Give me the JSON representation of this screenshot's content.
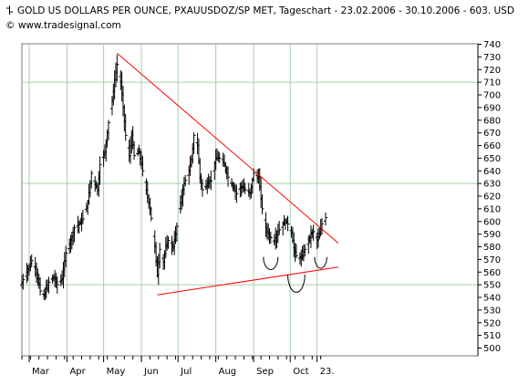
{
  "header": {
    "title": "GOLD US DOLLARS PER OUNCE, PXAUUSDOZ/SP MET, Tageschart - 23.02.2006 - 30.10.2006 - 603. USD",
    "credit": "© www.tradesignal.com"
  },
  "colors": {
    "price_bars": "#000000",
    "trendlines": "#ff0000",
    "grid": "#a9cfa9",
    "axis": "#000000"
  },
  "chart_data": {
    "type": "ohlc",
    "title": "GOLD US DOLLARS PER OUNCE, PXAUUSDOZ/SP MET, Tageschart - 23.02.2006 - 30.10.2006 - 603. USD",
    "x_date_range": [
      "2006-02-23",
      "2006-10-30"
    ],
    "y_axis": {
      "min": 500,
      "max": 740,
      "step": 10,
      "side": "right"
    },
    "y_ticks": [
      740,
      730,
      720,
      710,
      700,
      690,
      680,
      670,
      660,
      650,
      640,
      630,
      620,
      610,
      600,
      590,
      580,
      570,
      560,
      550,
      540,
      530,
      520,
      510,
      500
    ],
    "x_ticks": [
      {
        "label": "Mar",
        "date": "2006-03-01"
      },
      {
        "label": "Apr",
        "date": "2006-04-01"
      },
      {
        "label": "May",
        "date": "2006-05-01"
      },
      {
        "label": "Jun",
        "date": "2006-06-01"
      },
      {
        "label": "Jul",
        "date": "2006-07-01"
      },
      {
        "label": "Aug",
        "date": "2006-08-01"
      },
      {
        "label": "Sep",
        "date": "2006-09-01"
      },
      {
        "label": "Oct",
        "date": "2006-10-01"
      },
      {
        "label": "23.",
        "date": "2006-10-23"
      }
    ],
    "grid_h_values": [
      550,
      630,
      710
    ],
    "grid_v_dates": [
      "2006-03-01",
      "2006-04-01",
      "2006-05-01",
      "2006-06-01",
      "2006-07-01",
      "2006-08-01",
      "2006-09-01",
      "2006-10-01",
      "2006-10-23"
    ],
    "last_close": 603,
    "price_path": [
      [
        "2006-02-23",
        552
      ],
      [
        "2006-02-28",
        562
      ],
      [
        "2006-03-03",
        569
      ],
      [
        "2006-03-06",
        564
      ],
      [
        "2006-03-10",
        545
      ],
      [
        "2006-03-13",
        541
      ],
      [
        "2006-03-17",
        552
      ],
      [
        "2006-03-21",
        556
      ],
      [
        "2006-03-24",
        550
      ],
      [
        "2006-03-28",
        555
      ],
      [
        "2006-03-31",
        575
      ],
      [
        "2006-04-04",
        585
      ],
      [
        "2006-04-07",
        595
      ],
      [
        "2006-04-11",
        598
      ],
      [
        "2006-04-14",
        602
      ],
      [
        "2006-04-18",
        615
      ],
      [
        "2006-04-21",
        638
      ],
      [
        "2006-04-26",
        625
      ],
      [
        "2006-04-28",
        645
      ],
      [
        "2006-05-02",
        655
      ],
      [
        "2006-05-05",
        678
      ],
      [
        "2006-05-08",
        695
      ],
      [
        "2006-05-10",
        712
      ],
      [
        "2006-05-12",
        724
      ],
      [
        "2006-05-15",
        710
      ],
      [
        "2006-05-17",
        690
      ],
      [
        "2006-05-19",
        668
      ],
      [
        "2006-05-22",
        652
      ],
      [
        "2006-05-24",
        668
      ],
      [
        "2006-05-26",
        652
      ],
      [
        "2006-05-30",
        655
      ],
      [
        "2006-06-01",
        645
      ],
      [
        "2006-06-05",
        625
      ],
      [
        "2006-06-08",
        610
      ],
      [
        "2006-06-12",
        580
      ],
      [
        "2006-06-14",
        558
      ],
      [
        "2006-06-16",
        578
      ],
      [
        "2006-06-19",
        568
      ],
      [
        "2006-06-21",
        580
      ],
      [
        "2006-06-23",
        585
      ],
      [
        "2006-06-27",
        580
      ],
      [
        "2006-06-29",
        590
      ],
      [
        "2006-07-03",
        615
      ],
      [
        "2006-07-06",
        630
      ],
      [
        "2006-07-10",
        640
      ],
      [
        "2006-07-12",
        648
      ],
      [
        "2006-07-14",
        668
      ],
      [
        "2006-07-17",
        660
      ],
      [
        "2006-07-19",
        635
      ],
      [
        "2006-07-21",
        625
      ],
      [
        "2006-07-24",
        628
      ],
      [
        "2006-07-26",
        632
      ],
      [
        "2006-07-28",
        632
      ],
      [
        "2006-08-01",
        650
      ],
      [
        "2006-08-04",
        650
      ],
      [
        "2006-08-08",
        645
      ],
      [
        "2006-08-11",
        635
      ],
      [
        "2006-08-15",
        628
      ],
      [
        "2006-08-18",
        622
      ],
      [
        "2006-08-22",
        628
      ],
      [
        "2006-08-25",
        625
      ],
      [
        "2006-08-29",
        622
      ],
      [
        "2006-09-01",
        638
      ],
      [
        "2006-09-05",
        635
      ],
      [
        "2006-09-08",
        610
      ],
      [
        "2006-09-11",
        595
      ],
      [
        "2006-09-14",
        588
      ],
      [
        "2006-09-18",
        585
      ],
      [
        "2006-09-21",
        592
      ],
      [
        "2006-09-25",
        598
      ],
      [
        "2006-09-28",
        600
      ],
      [
        "2006-10-02",
        592
      ],
      [
        "2006-10-04",
        578
      ],
      [
        "2006-10-06",
        573
      ],
      [
        "2006-10-10",
        571
      ],
      [
        "2006-10-13",
        578
      ],
      [
        "2006-10-16",
        585
      ],
      [
        "2006-10-18",
        590
      ],
      [
        "2006-10-20",
        592
      ],
      [
        "2006-10-23",
        585
      ],
      [
        "2006-10-25",
        590
      ],
      [
        "2006-10-27",
        598
      ],
      [
        "2006-10-30",
        603
      ]
    ],
    "trendlines": [
      {
        "name": "resistance",
        "from": [
          "2006-05-12",
          733
        ],
        "to": [
          "2006-10-30",
          590
        ]
      },
      {
        "name": "support",
        "from": [
          "2006-06-14",
          542
        ],
        "to": [
          "2006-10-30",
          564
        ]
      }
    ],
    "arcs": [
      {
        "center": [
          "2006-09-15",
          572
        ],
        "rx_days": 6,
        "ry": 10
      },
      {
        "center": [
          "2006-10-06",
          558
        ],
        "rx_days": 7,
        "ry": 14
      },
      {
        "center": [
          "2006-10-26",
          572
        ],
        "rx_days": 5,
        "ry": 9
      }
    ]
  }
}
